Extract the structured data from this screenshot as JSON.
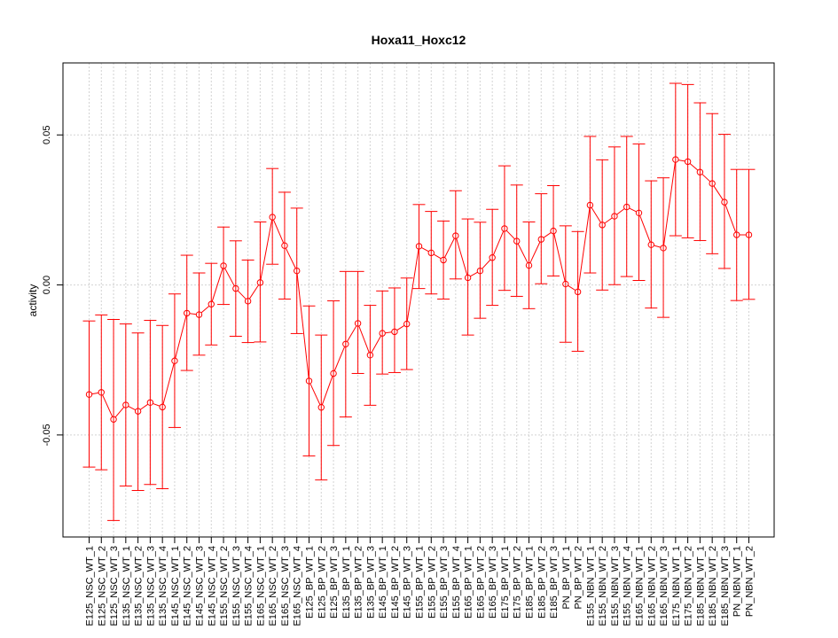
{
  "chart_data": {
    "type": "line",
    "title": "Hoxa11_Hoxc12",
    "xlabel": "",
    "ylabel": "activity",
    "ylim": [
      -0.084,
      0.074
    ],
    "yticks": [
      -0.05,
      0.0,
      0.05
    ],
    "ytick_labels": [
      "-0.05",
      "0.00",
      "0.05"
    ],
    "grid": true,
    "color": "#ff0000",
    "categories": [
      "E125_NSC_WT_1",
      "E125_NSC_WT_2",
      "E125_NSC_WT_3",
      "E135_NSC_WT_1",
      "E135_NSC_WT_2",
      "E135_NSC_WT_3",
      "E135_NSC_WT_4",
      "E145_NSC_WT_1",
      "E145_NSC_WT_2",
      "E145_NSC_WT_3",
      "E145_NSC_WT_4",
      "E155_NSC_WT_2",
      "E155_NSC_WT_3",
      "E155_NSC_WT_4",
      "E165_NSC_WT_1",
      "E165_NSC_WT_2",
      "E165_NSC_WT_3",
      "E165_NSC_WT_4",
      "E125_BP_WT_1",
      "E125_BP_WT_2",
      "E125_BP_WT_3",
      "E135_BP_WT_1",
      "E135_BP_WT_2",
      "E135_BP_WT_3",
      "E145_BP_WT_1",
      "E145_BP_WT_2",
      "E145_BP_WT_3",
      "E155_BP_WT_1",
      "E155_BP_WT_2",
      "E155_BP_WT_3",
      "E155_BP_WT_4",
      "E165_BP_WT_1",
      "E165_BP_WT_2",
      "E165_BP_WT_3",
      "E175_BP_WT_1",
      "E175_BP_WT_2",
      "E185_BP_WT_1",
      "E185_BP_WT_2",
      "E185_BP_WT_3",
      "PN_BP_WT_1",
      "PN_BP_WT_2",
      "E155_NBN_WT_1",
      "E155_NBN_WT_2",
      "E155_NBN_WT_3",
      "E155_NBN_WT_4",
      "E165_NBN_WT_1",
      "E165_NBN_WT_2",
      "E165_NBN_WT_3",
      "E175_NBN_WT_1",
      "E175_NBN_WT_2",
      "E185_NBN_WT_1",
      "E185_NBN_WT_2",
      "E185_NBN_WT_3",
      "PN_NBN_WT_1",
      "PN_NBN_WT_2"
    ],
    "values": [
      -0.0365,
      -0.0358,
      -0.0448,
      -0.04,
      -0.0421,
      -0.0392,
      -0.0407,
      -0.0253,
      -0.0094,
      -0.0099,
      -0.0064,
      0.0064,
      -0.0012,
      -0.0054,
      0.0008,
      0.0226,
      0.0131,
      0.0047,
      -0.032,
      -0.0408,
      -0.0295,
      -0.0197,
      -0.0128,
      -0.0234,
      -0.0161,
      -0.0156,
      -0.013,
      0.0129,
      0.0107,
      0.0083,
      0.0164,
      0.0024,
      0.0047,
      0.0091,
      0.0188,
      0.0146,
      0.0065,
      0.0152,
      0.018,
      0.0003,
      -0.0023,
      0.0266,
      0.02,
      0.0229,
      0.026,
      0.024,
      0.0134,
      0.0123,
      0.0418,
      0.0411,
      0.0376,
      0.0338,
      0.0276,
      0.0167,
      0.0167
    ],
    "upper": [
      -0.012,
      -0.01,
      -0.0115,
      -0.013,
      -0.016,
      -0.0118,
      -0.0135,
      -0.003,
      0.0099,
      0.004,
      0.0072,
      0.0193,
      0.0147,
      0.0083,
      0.021,
      0.0388,
      0.0309,
      0.0256,
      -0.007,
      -0.0167,
      -0.0053,
      0.0045,
      0.0045,
      -0.0068,
      -0.002,
      -0.001,
      0.0023,
      0.0268,
      0.0245,
      0.0213,
      0.0314,
      0.022,
      0.0209,
      0.0252,
      0.0397,
      0.0333,
      0.021,
      0.0304,
      0.0331,
      0.0197,
      0.0178,
      0.0495,
      0.0417,
      0.046,
      0.0495,
      0.047,
      0.0347,
      0.0357,
      0.0672,
      0.0668,
      0.0607,
      0.0571,
      0.0502,
      0.0385,
      0.0385
    ],
    "lower": [
      -0.0607,
      -0.0616,
      -0.0785,
      -0.067,
      -0.0685,
      -0.0665,
      -0.0679,
      -0.0475,
      -0.0285,
      -0.0234,
      -0.02,
      -0.0065,
      -0.0171,
      -0.0192,
      -0.019,
      0.0069,
      -0.0047,
      -0.0162,
      -0.057,
      -0.065,
      -0.0535,
      -0.044,
      -0.0295,
      -0.0401,
      -0.0297,
      -0.0292,
      -0.0282,
      -0.0012,
      -0.003,
      -0.0047,
      0.002,
      -0.0167,
      -0.0111,
      -0.0068,
      -0.0018,
      -0.0038,
      -0.0079,
      0.0004,
      0.003,
      -0.0191,
      -0.0221,
      0.004,
      -0.0017,
      0.0001,
      0.0028,
      0.0015,
      -0.0077,
      -0.0108,
      0.0164,
      0.0157,
      0.0148,
      0.0104,
      0.0055,
      -0.0052,
      -0.0048
    ]
  }
}
